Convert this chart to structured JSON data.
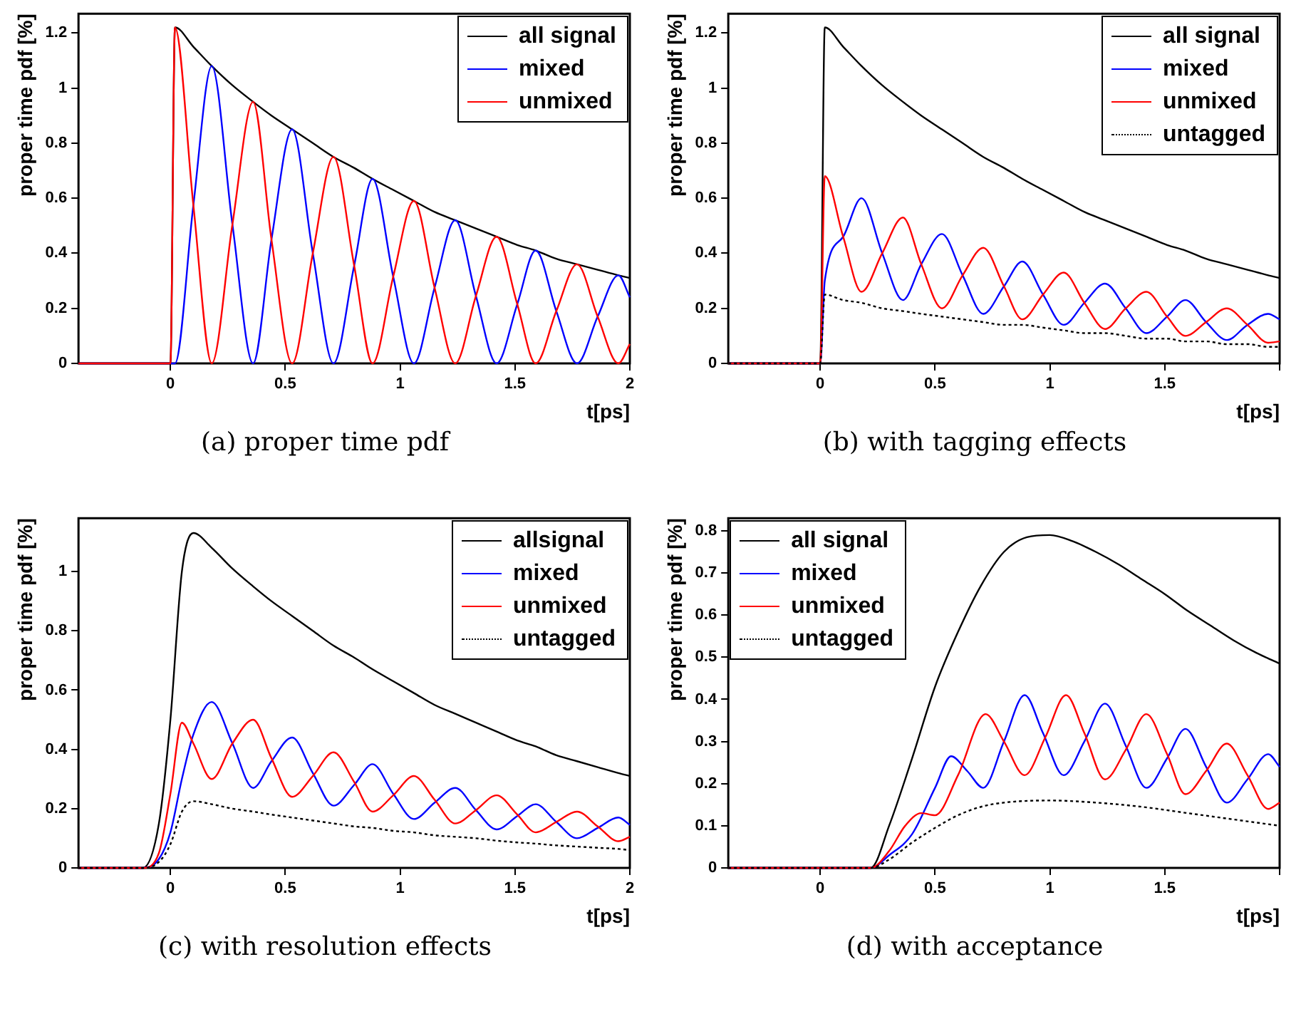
{
  "chart_data": [
    {
      "type": "line",
      "xlabel": "t[ps]",
      "ylabel": "proper time pdf [%]",
      "annotations": [
        "(a) proper time pdf"
      ],
      "legend": "top right",
      "xlim": [
        -0.4,
        2
      ],
      "xticks": [
        0,
        0.5,
        1,
        1.5,
        2
      ],
      "ylim": [
        0,
        1.27
      ],
      "yticks": [
        0,
        0.2,
        0.4,
        0.6,
        0.8,
        1,
        1.2
      ],
      "x": [
        -0.4,
        -0.01,
        0,
        0.02,
        0.1,
        0.18,
        0.27,
        0.36,
        0.44,
        0.53,
        0.62,
        0.71,
        0.8,
        0.88,
        0.97,
        1.06,
        1.15,
        1.24,
        1.33,
        1.42,
        1.51,
        1.59,
        1.68,
        1.77,
        1.86,
        1.95,
        2.0
      ],
      "series": [
        {
          "name": "all signal",
          "color": "#000000",
          "values": [
            0,
            0,
            0,
            1.22,
            1.15,
            1.08,
            1.01,
            0.95,
            0.9,
            0.85,
            0.8,
            0.75,
            0.71,
            0.67,
            0.63,
            0.59,
            0.55,
            0.52,
            0.49,
            0.46,
            0.43,
            0.41,
            0.38,
            0.36,
            0.34,
            0.32,
            0.31
          ]
        },
        {
          "name": "mixed",
          "color": "#0000ff",
          "values": [
            0,
            0,
            0,
            0,
            0.575,
            1.08,
            0.505,
            0,
            0.45,
            0.85,
            0.4,
            0,
            0.355,
            0.67,
            0.315,
            0,
            0.275,
            0.52,
            0.245,
            0,
            0.215,
            0.41,
            0.19,
            0,
            0.17,
            0.32,
            0.24
          ]
        },
        {
          "name": "unmixed",
          "color": "#ff0000",
          "values": [
            0,
            0,
            0,
            1.22,
            0.575,
            0,
            0.505,
            0.95,
            0.45,
            0,
            0.4,
            0.75,
            0.355,
            0,
            0.315,
            0.59,
            0.275,
            0,
            0.245,
            0.46,
            0.215,
            0,
            0.19,
            0.36,
            0.17,
            0,
            0.07
          ]
        }
      ]
    },
    {
      "type": "line",
      "xlabel": "t[ps]",
      "ylabel": "proper time pdf [%]",
      "annotations": [
        "(b) with tagging effects"
      ],
      "legend": "top right",
      "xlim": [
        -0.4,
        2
      ],
      "xticks": [
        0,
        0.5,
        1,
        1.5,
        {
          "value": 2,
          "label": null
        }
      ],
      "ylim": [
        0,
        1.27
      ],
      "yticks": [
        0,
        0.2,
        0.4,
        0.6,
        0.8,
        1,
        1.2
      ],
      "x": [
        -0.4,
        -0.01,
        0,
        0.02,
        0.1,
        0.18,
        0.27,
        0.36,
        0.44,
        0.53,
        0.62,
        0.71,
        0.8,
        0.88,
        0.97,
        1.06,
        1.15,
        1.24,
        1.33,
        1.42,
        1.51,
        1.59,
        1.68,
        1.77,
        1.86,
        1.95,
        2.0
      ],
      "series": [
        {
          "name": "all signal",
          "color": "#000000",
          "values": [
            0,
            0,
            0,
            1.22,
            1.15,
            1.08,
            1.01,
            0.95,
            0.9,
            0.85,
            0.8,
            0.75,
            0.71,
            0.67,
            0.63,
            0.59,
            0.55,
            0.52,
            0.49,
            0.46,
            0.43,
            0.41,
            0.38,
            0.36,
            0.34,
            0.32,
            0.31
          ]
        },
        {
          "name": "mixed",
          "color": "#0000ff",
          "values": [
            0,
            0,
            0,
            0.3,
            0.46,
            0.6,
            0.4,
            0.23,
            0.36,
            0.47,
            0.32,
            0.18,
            0.28,
            0.37,
            0.25,
            0.14,
            0.22,
            0.29,
            0.2,
            0.11,
            0.17,
            0.23,
            0.15,
            0.085,
            0.14,
            0.18,
            0.16
          ]
        },
        {
          "name": "unmixed",
          "color": "#ff0000",
          "values": [
            0,
            0,
            0,
            0.68,
            0.46,
            0.26,
            0.4,
            0.53,
            0.36,
            0.2,
            0.32,
            0.42,
            0.28,
            0.16,
            0.25,
            0.33,
            0.22,
            0.125,
            0.2,
            0.26,
            0.17,
            0.1,
            0.15,
            0.2,
            0.14,
            0.075,
            0.08
          ]
        },
        {
          "name": "untagged",
          "color": "#000000",
          "line_style": "dotted",
          "values": [
            0,
            0,
            0,
            0.25,
            0.23,
            0.22,
            0.2,
            0.19,
            0.18,
            0.17,
            0.16,
            0.15,
            0.14,
            0.14,
            0.13,
            0.12,
            0.11,
            0.11,
            0.1,
            0.09,
            0.09,
            0.08,
            0.08,
            0.07,
            0.07,
            0.06,
            0.06
          ]
        }
      ]
    },
    {
      "type": "line",
      "xlabel": "t[ps]",
      "ylabel": "proper time pdf [%]",
      "annotations": [
        "(c) with resolution effects"
      ],
      "legend": "top right",
      "xlim": [
        -0.4,
        2
      ],
      "xticks": [
        0,
        0.5,
        1,
        1.5,
        2
      ],
      "ylim": [
        0,
        1.18
      ],
      "yticks": [
        0,
        0.2,
        0.4,
        0.6,
        0.8,
        1
      ],
      "x": [
        -0.4,
        -0.12,
        -0.05,
        0,
        0.05,
        0.1,
        0.18,
        0.27,
        0.36,
        0.44,
        0.53,
        0.62,
        0.71,
        0.8,
        0.88,
        0.97,
        1.06,
        1.15,
        1.24,
        1.33,
        1.42,
        1.51,
        1.59,
        1.68,
        1.77,
        1.86,
        1.95,
        2.0
      ],
      "series": [
        {
          "name": "allsignal",
          "color": "#000000",
          "values": [
            0,
            0,
            0.15,
            0.5,
            1.0,
            1.13,
            1.08,
            1.01,
            0.95,
            0.9,
            0.85,
            0.8,
            0.75,
            0.71,
            0.67,
            0.63,
            0.59,
            0.55,
            0.52,
            0.49,
            0.46,
            0.43,
            0.41,
            0.38,
            0.36,
            0.34,
            0.32,
            0.31
          ]
        },
        {
          "name": "mixed",
          "color": "#0000ff",
          "values": [
            0,
            0,
            0.03,
            0.12,
            0.3,
            0.45,
            0.56,
            0.42,
            0.27,
            0.36,
            0.44,
            0.32,
            0.21,
            0.28,
            0.35,
            0.25,
            0.165,
            0.22,
            0.27,
            0.195,
            0.13,
            0.175,
            0.215,
            0.155,
            0.1,
            0.135,
            0.17,
            0.145
          ]
        },
        {
          "name": "unmixed",
          "color": "#ff0000",
          "values": [
            0,
            0,
            0.05,
            0.25,
            0.49,
            0.42,
            0.3,
            0.42,
            0.5,
            0.37,
            0.24,
            0.31,
            0.39,
            0.29,
            0.19,
            0.245,
            0.31,
            0.23,
            0.15,
            0.195,
            0.245,
            0.18,
            0.12,
            0.155,
            0.19,
            0.14,
            0.09,
            0.105
          ]
        },
        {
          "name": "untagged",
          "color": "#000000",
          "line_style": "dotted",
          "values": [
            0,
            0,
            0.02,
            0.08,
            0.19,
            0.225,
            0.215,
            0.2,
            0.19,
            0.18,
            0.17,
            0.16,
            0.15,
            0.14,
            0.135,
            0.125,
            0.12,
            0.11,
            0.105,
            0.1,
            0.092,
            0.086,
            0.082,
            0.076,
            0.072,
            0.068,
            0.064,
            0.06
          ]
        }
      ]
    },
    {
      "type": "line",
      "xlabel": "t[ps]",
      "ylabel": "proper time pdf [%]",
      "annotations": [
        "(d) with acceptance"
      ],
      "legend": "top left",
      "xlim": [
        -0.4,
        2
      ],
      "xticks": [
        0,
        0.5,
        1,
        1.5,
        {
          "value": 2,
          "label": null
        }
      ],
      "ylim": [
        0,
        0.83
      ],
      "yticks": [
        0,
        0.1,
        0.2,
        0.3,
        0.4,
        0.5,
        0.6,
        0.7,
        0.8
      ],
      "series": [
        {
          "name": "all signal",
          "color": "#000000",
          "x": [
            -0.4,
            0.22,
            0.3,
            0.4,
            0.5,
            0.6,
            0.7,
            0.8,
            0.9,
            1.0,
            1.1,
            1.2,
            1.3,
            1.4,
            1.5,
            1.6,
            1.7,
            1.8,
            1.9,
            2.0
          ],
          "values": [
            0,
            0,
            0.1,
            0.26,
            0.43,
            0.56,
            0.67,
            0.75,
            0.785,
            0.79,
            0.775,
            0.75,
            0.72,
            0.685,
            0.65,
            0.61,
            0.575,
            0.54,
            0.51,
            0.485
          ]
        },
        {
          "name": "mixed",
          "color": "#0000ff",
          "x": [
            -0.4,
            0.22,
            0.3,
            0.4,
            0.5,
            0.57,
            0.64,
            0.71,
            0.8,
            0.89,
            0.97,
            1.06,
            1.15,
            1.24,
            1.33,
            1.42,
            1.51,
            1.59,
            1.68,
            1.77,
            1.86,
            1.95,
            2.0
          ],
          "values": [
            0,
            0,
            0.03,
            0.08,
            0.19,
            0.265,
            0.23,
            0.19,
            0.3,
            0.41,
            0.32,
            0.22,
            0.3,
            0.39,
            0.29,
            0.19,
            0.26,
            0.33,
            0.24,
            0.155,
            0.21,
            0.27,
            0.24
          ]
        },
        {
          "name": "unmixed",
          "color": "#ff0000",
          "x": [
            -0.4,
            0.22,
            0.3,
            0.37,
            0.44,
            0.5,
            0.6,
            0.72,
            0.8,
            0.89,
            0.98,
            1.07,
            1.15,
            1.24,
            1.33,
            1.42,
            1.51,
            1.59,
            1.68,
            1.77,
            1.86,
            1.95,
            2.0
          ],
          "values": [
            0,
            0,
            0.04,
            0.1,
            0.13,
            0.125,
            0.22,
            0.365,
            0.3,
            0.22,
            0.31,
            0.41,
            0.32,
            0.21,
            0.28,
            0.365,
            0.27,
            0.175,
            0.23,
            0.295,
            0.22,
            0.14,
            0.155
          ]
        },
        {
          "name": "untagged",
          "color": "#000000",
          "line_style": "dotted",
          "x": [
            -0.4,
            0.22,
            0.3,
            0.4,
            0.5,
            0.6,
            0.7,
            0.8,
            1.0,
            1.2,
            1.4,
            1.6,
            1.8,
            2.0
          ],
          "values": [
            0,
            0,
            0.02,
            0.06,
            0.095,
            0.125,
            0.145,
            0.155,
            0.16,
            0.155,
            0.145,
            0.13,
            0.115,
            0.1
          ]
        }
      ]
    }
  ]
}
